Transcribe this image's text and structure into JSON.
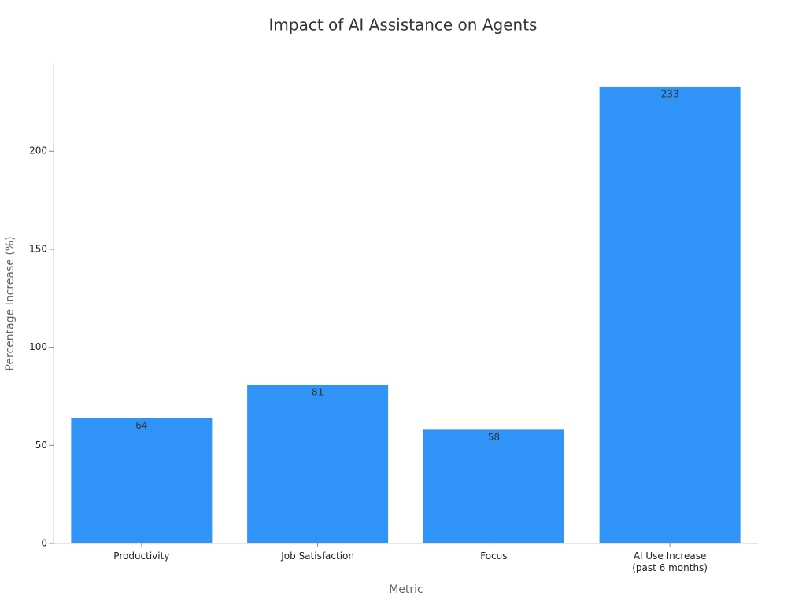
{
  "chart_data": {
    "type": "bar",
    "title": "Impact of AI Assistance on Agents",
    "x_label": "Metric",
    "y_label": "Percentage Increase (%)",
    "categories": [
      "Productivity",
      "Job Satisfaction",
      "Focus",
      "AI Use Increase\n(past 6 months)"
    ],
    "values": [
      64,
      81,
      58,
      233
    ],
    "color": "#2f93f8",
    "ylim": [
      0,
      245
    ],
    "yticks": [
      0,
      50,
      100,
      150,
      200
    ],
    "grid": false
  }
}
